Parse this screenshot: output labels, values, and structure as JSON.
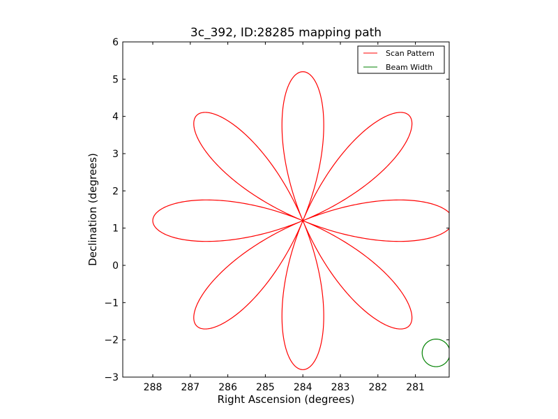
{
  "chart_data": {
    "type": "line",
    "title": "3c_392, ID:28285 mapping path",
    "xlabel": "Right Ascension (degrees)",
    "ylabel": "Declination (degrees)",
    "xlim": [
      288.8,
      280.1
    ],
    "ylim": [
      -3,
      6
    ],
    "x_inverted": true,
    "xticks": [
      288,
      287,
      286,
      285,
      284,
      283,
      282,
      281
    ],
    "yticks": [
      -3,
      -2,
      -1,
      0,
      1,
      2,
      3,
      4,
      5,
      6
    ],
    "grid": false,
    "legend_position": "top-right",
    "series": [
      {
        "name": "Scan Pattern",
        "color": "#ff0000",
        "kind": "rose",
        "center_ra": 284.0,
        "center_dec": 1.2,
        "amplitude": 4.0,
        "petals": 8,
        "rotation_deg": 0
      },
      {
        "name": "Beam Width",
        "color": "#008000",
        "kind": "circle",
        "center_ra": 280.45,
        "center_dec": -2.35,
        "radius": 0.37
      }
    ]
  }
}
